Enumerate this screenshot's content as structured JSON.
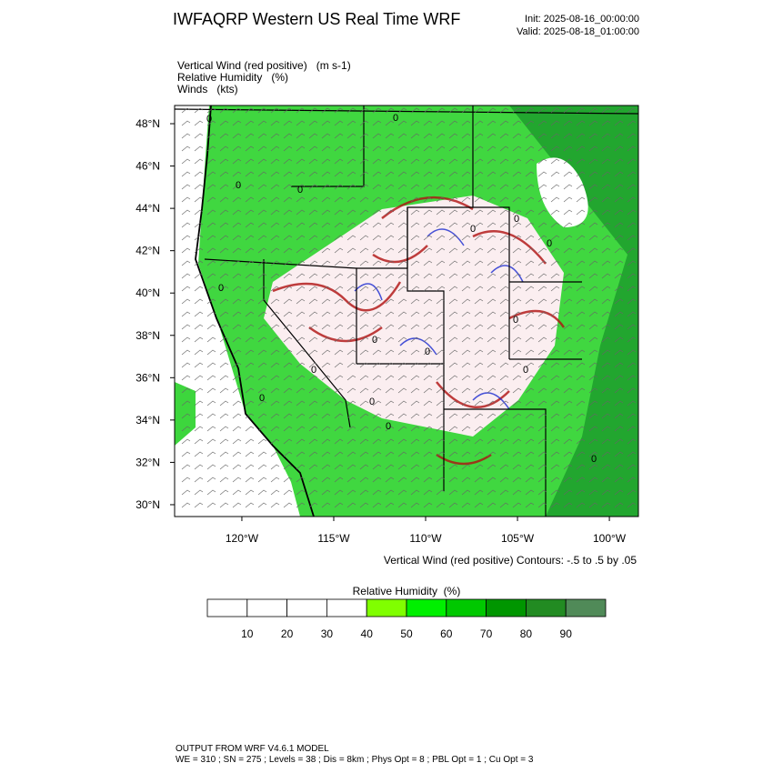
{
  "header": {
    "title": "IWFAQRP Western US Real Time WRF",
    "init": "Init: 2025-08-16_00:00:00",
    "valid": "Valid: 2025-08-18_01:00:00"
  },
  "fields": [
    "Vertical Wind (red positive)   (m s-1)",
    "Relative Humidity   (%)",
    "Winds   (kts)"
  ],
  "map": {
    "latlim": [
      29.44,
      48.86
    ],
    "lonlim": [
      -123.66,
      -98.42
    ],
    "latticks": [
      {
        "value": 30,
        "label": "30°N"
      },
      {
        "value": 32,
        "label": "32°N"
      },
      {
        "value": 34,
        "label": "34°N"
      },
      {
        "value": 36,
        "label": "36°N"
      },
      {
        "value": 38,
        "label": "38°N"
      },
      {
        "value": 40,
        "label": "40°N"
      },
      {
        "value": 42,
        "label": "42°N"
      },
      {
        "value": 44,
        "label": "44°N"
      },
      {
        "value": 46,
        "label": "46°N"
      },
      {
        "value": 48,
        "label": "48°N"
      }
    ],
    "lonticks": [
      {
        "value": -120,
        "label": "120°W"
      },
      {
        "value": -115,
        "label": "115°W"
      },
      {
        "value": -110,
        "label": "110°W"
      },
      {
        "value": -105,
        "label": "105°W"
      },
      {
        "value": -100,
        "label": "100°W"
      }
    ],
    "contour_label": "0",
    "contour_note": "Vertical Wind (red positive) Contours: -.5 to .5 by .05"
  },
  "colorbar": {
    "title": "Relative Humidity  (%)",
    "ticks": [
      10,
      20,
      30,
      40,
      50,
      60,
      70,
      80,
      90
    ],
    "colors": [
      "#ffffff",
      "#ffffff",
      "#ffffff",
      "#ffffff",
      "#80ff00",
      "#00f000",
      "#00c800",
      "#009600",
      "#228b22",
      "#508a58"
    ]
  },
  "footer": [
    "OUTPUT FROM WRF V4.6.1 MODEL",
    "WE = 310 ; SN = 275 ; Levels = 38 ; Dis = 8km ; Phys Opt = 8 ; PBL Opt = 1 ; Cu Opt = 3"
  ]
}
